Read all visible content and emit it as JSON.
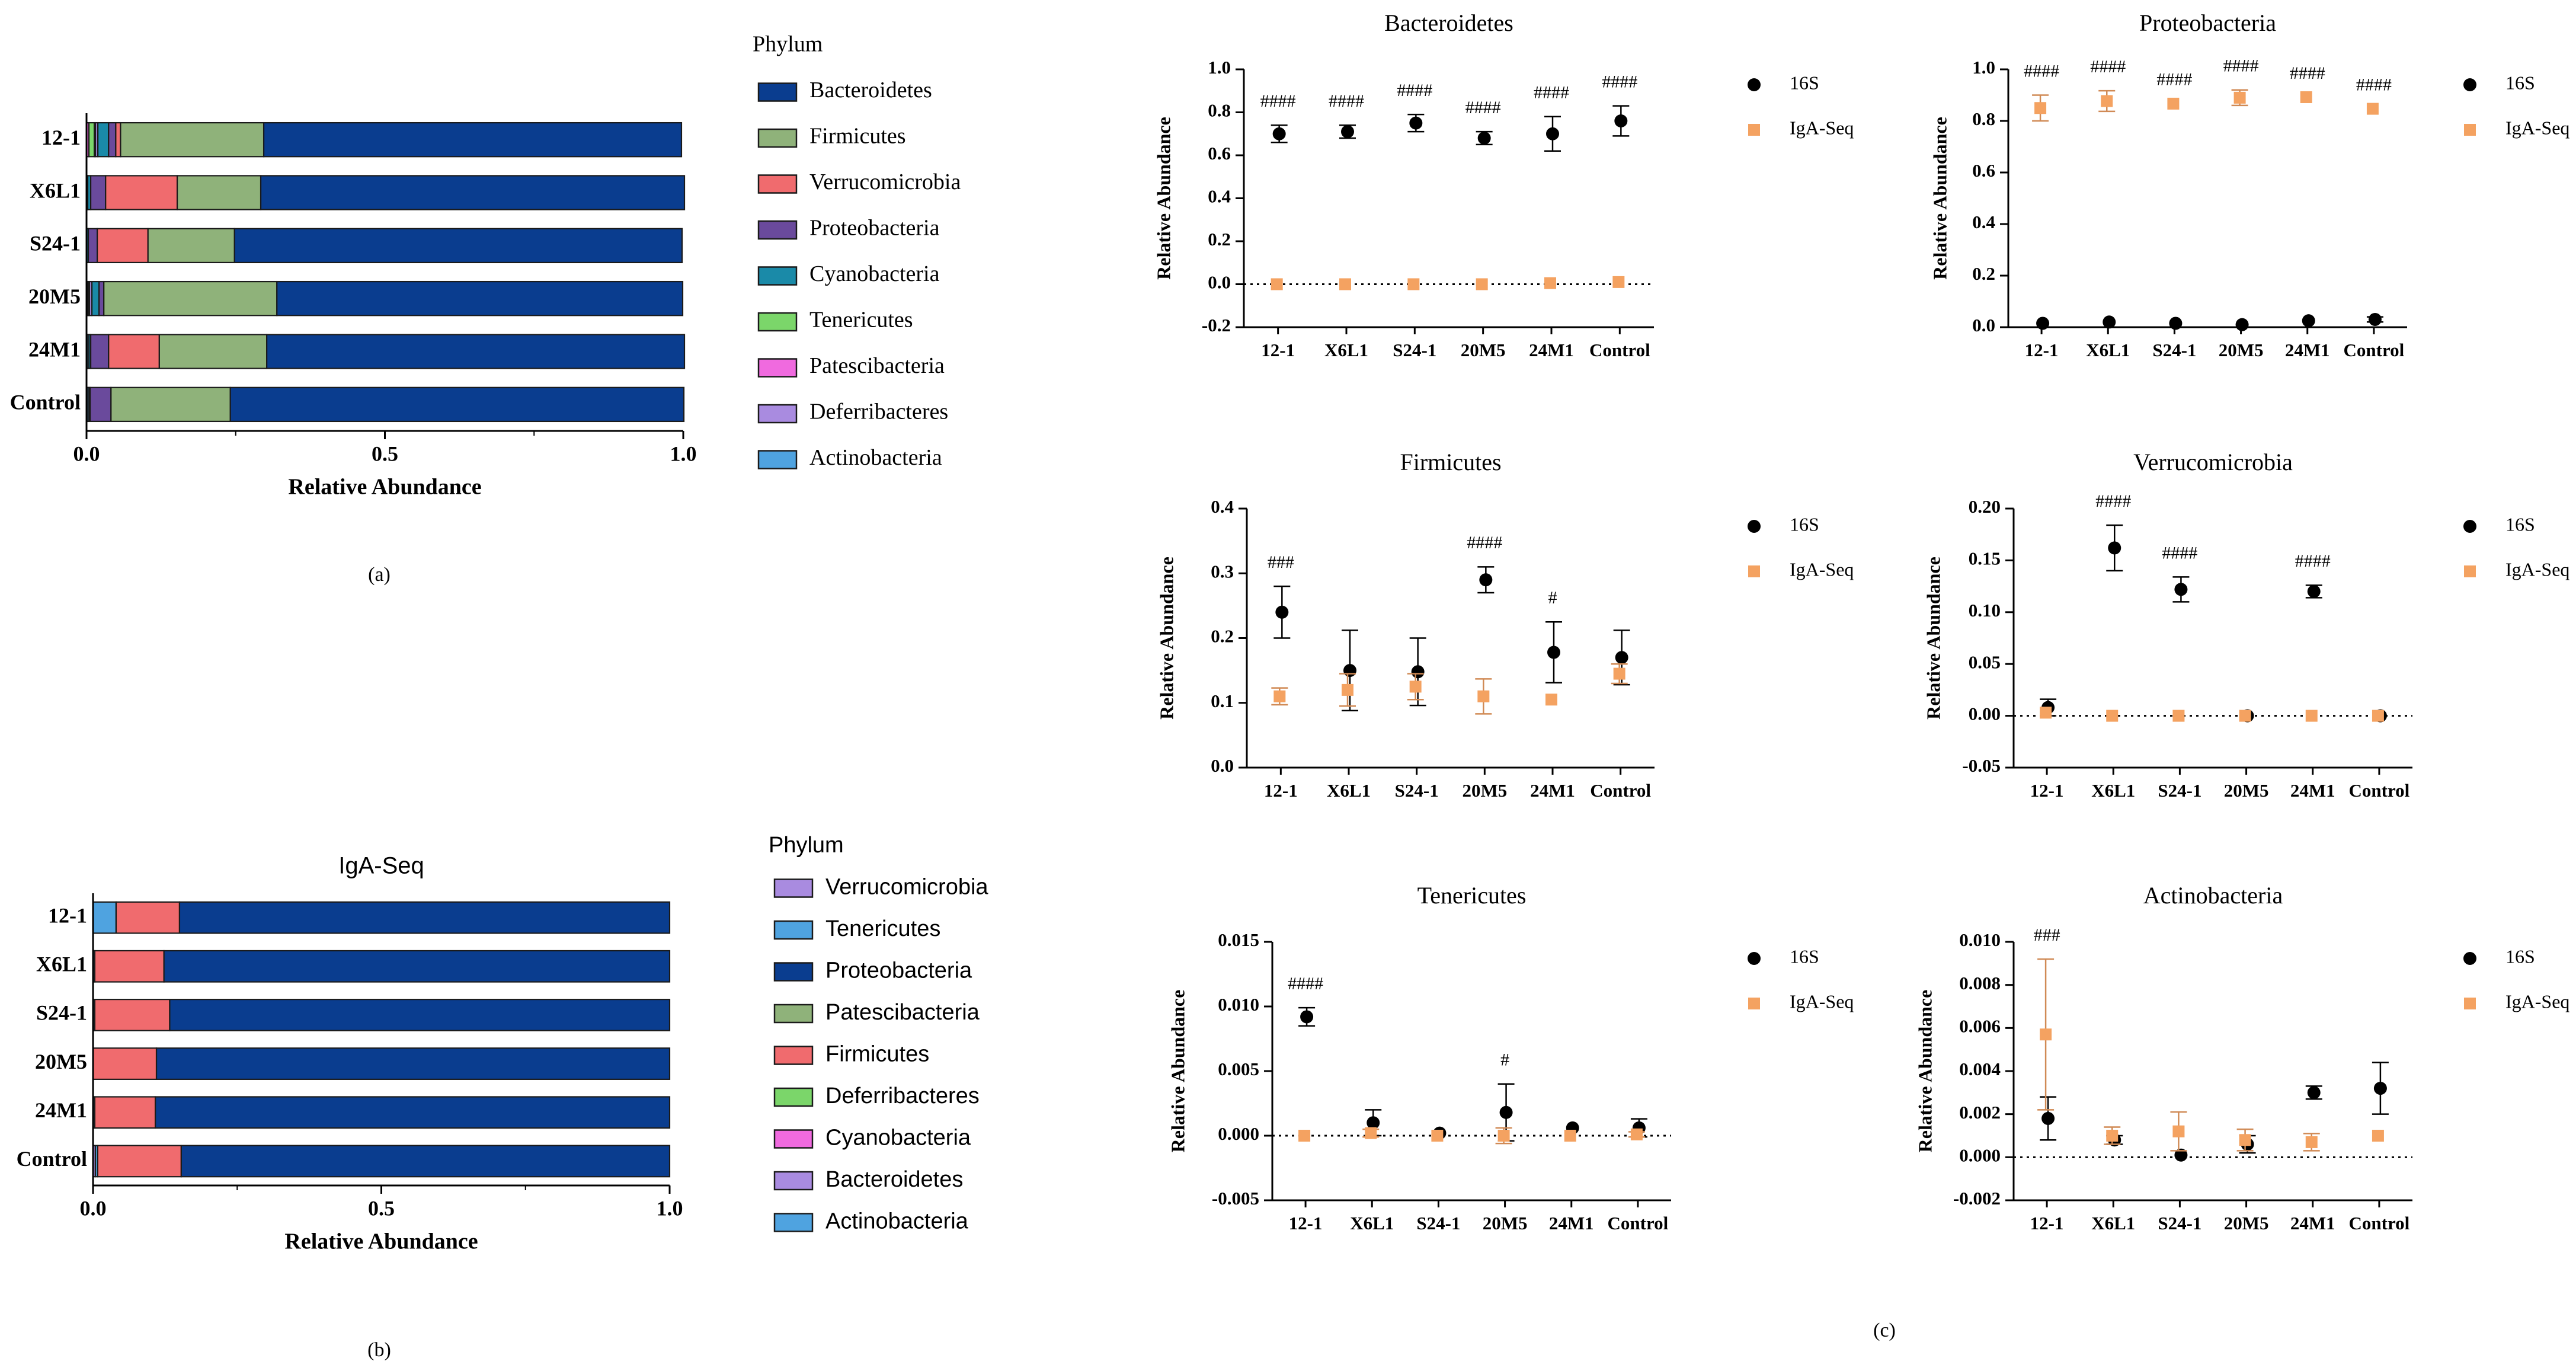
{
  "figure_labels": {
    "a": "(a)",
    "b": "(b)",
    "c": "(c)"
  },
  "chart_data": [
    {
      "id": "a",
      "type": "bar",
      "orientation": "horizontal",
      "stacked": true,
      "title": "",
      "xlabel": "Relative Abundance",
      "ylabel": "",
      "xlim": [
        0,
        1.0
      ],
      "xticks": [
        "0.0",
        "0.5",
        "1.0"
      ],
      "categories": [
        "12-1",
        "X6L1",
        "S24-1",
        "20M5",
        "24M1",
        "Control"
      ],
      "legend_title": "Phylum",
      "legend_position": "right",
      "stack_order": [
        "Patescibacteria",
        "Tenericutes",
        "Actinobacteria",
        "Deferribacteres",
        "Cyanobacteria",
        "Proteobacteria",
        "Verrucomicrobia",
        "Firmicutes",
        "Bacteroidetes"
      ],
      "series": [
        {
          "name": "Bacteroidetes",
          "color": "#0a3d8f",
          "values": [
            0.7,
            0.71,
            0.75,
            0.68,
            0.7,
            0.76
          ]
        },
        {
          "name": "Firmicutes",
          "color": "#8fb27a",
          "values": [
            0.24,
            0.14,
            0.145,
            0.29,
            0.18,
            0.2
          ]
        },
        {
          "name": "Verrucomicrobia",
          "color": "#f06b6e",
          "values": [
            0.008,
            0.12,
            0.085,
            0.0,
            0.085,
            0.0
          ]
        },
        {
          "name": "Proteobacteria",
          "color": "#6a4a9c",
          "values": [
            0.012,
            0.025,
            0.015,
            0.008,
            0.03,
            0.035
          ]
        },
        {
          "name": "Cyanobacteria",
          "color": "#1a8aa8",
          "values": [
            0.018,
            0.005,
            0.003,
            0.012,
            0.003,
            0.002
          ]
        },
        {
          "name": "Tenericutes",
          "color": "#7bd66a",
          "values": [
            0.009,
            0.001,
            0.0,
            0.002,
            0.001,
            0.001
          ]
        },
        {
          "name": "Patescibacteria",
          "color": "#f06adf",
          "values": [
            0.004,
            0.0,
            0.0,
            0.002,
            0.0,
            0.0
          ]
        },
        {
          "name": "Deferribacteres",
          "color": "#a98be0",
          "values": [
            0.004,
            0.0,
            0.0,
            0.004,
            0.0,
            0.0
          ]
        },
        {
          "name": "Actinobacteria",
          "color": "#4fa3e0",
          "values": [
            0.002,
            0.001,
            0.0,
            0.001,
            0.003,
            0.003
          ]
        }
      ]
    },
    {
      "id": "b",
      "type": "bar",
      "orientation": "horizontal",
      "stacked": true,
      "title": "IgA-Seq",
      "xlabel": "Relative Abundance",
      "ylabel": "",
      "xlim": [
        0,
        1.0
      ],
      "xticks": [
        "0.0",
        "0.5",
        "1.0"
      ],
      "categories": [
        "12-1",
        "X6L1",
        "S24-1",
        "20M5",
        "24M1",
        "Control"
      ],
      "legend_title": "Phylum",
      "legend_position": "right",
      "stack_order": [
        "Verrucomicrobia",
        "Tenericutes",
        "Firmicutes",
        "Proteobacteria"
      ],
      "legend_entries": [
        {
          "name": "Verrucomicrobia",
          "color": "#a98be0"
        },
        {
          "name": "Tenericutes",
          "color": "#4fa3e0"
        },
        {
          "name": "Proteobacteria",
          "color": "#0a3d8f"
        },
        {
          "name": "Patescibacteria",
          "color": "#8fb27a"
        },
        {
          "name": "Firmicutes",
          "color": "#f06b6e"
        },
        {
          "name": "Deferribacteres",
          "color": "#7bd66a"
        },
        {
          "name": "Cyanobacteria",
          "color": "#f06adf"
        },
        {
          "name": "Bacteroidetes",
          "color": "#a98be0"
        },
        {
          "name": "Actinobacteria",
          "color": "#4fa3e0"
        }
      ],
      "series": [
        {
          "name": "Verrucomicrobia",
          "color": "#a98be0",
          "values": [
            0.0,
            0.0,
            0.0,
            0.0,
            0.0,
            0.004
          ]
        },
        {
          "name": "Tenericutes",
          "color": "#4fa3e0",
          "values": [
            0.04,
            0.003,
            0.003,
            0.0,
            0.003,
            0.004
          ]
        },
        {
          "name": "Firmicutes",
          "color": "#f06b6e",
          "values": [
            0.11,
            0.12,
            0.13,
            0.11,
            0.105,
            0.145
          ]
        },
        {
          "name": "Proteobacteria",
          "color": "#0a3d8f",
          "values": [
            0.85,
            0.877,
            0.867,
            0.89,
            0.892,
            0.847
          ]
        }
      ]
    },
    {
      "id": "c1",
      "type": "scatter",
      "title": "Bacteroidetes",
      "xlabel": "",
      "ylabel": "Relative Abundance",
      "categories": [
        "12-1",
        "X6L1",
        "S24-1",
        "20M5",
        "24M1",
        "Control"
      ],
      "ylim": [
        -0.2,
        1.0
      ],
      "yticks": [
        "-0.2",
        "0.0",
        "0.2",
        "0.4",
        "0.6",
        "0.8",
        "1.0"
      ],
      "zero_line": true,
      "annotations": [
        "####",
        "####",
        "####",
        "####",
        "####",
        "####"
      ],
      "legend_position": "right",
      "series": [
        {
          "name": "16S",
          "marker": "circle",
          "color": "#000000",
          "values": [
            0.7,
            0.71,
            0.75,
            0.68,
            0.7,
            0.76
          ],
          "err": [
            0.04,
            0.03,
            0.04,
            0.03,
            0.08,
            0.07
          ]
        },
        {
          "name": "IgA-Seq",
          "marker": "square",
          "color": "#f4a261",
          "values": [
            0.0,
            0.0,
            0.0,
            0.0,
            0.005,
            0.01
          ],
          "err": [
            0,
            0,
            0,
            0,
            0,
            0
          ]
        }
      ]
    },
    {
      "id": "c2",
      "type": "scatter",
      "title": "Proteobacteria",
      "xlabel": "",
      "ylabel": "Relative Abundance",
      "categories": [
        "12-1",
        "X6L1",
        "S24-1",
        "20M5",
        "24M1",
        "Control"
      ],
      "ylim": [
        0.0,
        1.0
      ],
      "yticks": [
        "0.0",
        "0.2",
        "0.4",
        "0.6",
        "0.8",
        "1.0"
      ],
      "zero_line": false,
      "annotations": [
        "####",
        "####",
        "####",
        "####",
        "####",
        "####"
      ],
      "legend_position": "right",
      "series": [
        {
          "name": "16S",
          "marker": "circle",
          "color": "#000000",
          "values": [
            0.015,
            0.02,
            0.015,
            0.01,
            0.025,
            0.03
          ],
          "err": [
            0,
            0,
            0,
            0,
            0,
            0.01
          ]
        },
        {
          "name": "IgA-Seq",
          "marker": "square",
          "color": "#f4a261",
          "values": [
            0.85,
            0.877,
            0.867,
            0.89,
            0.892,
            0.847
          ],
          "err": [
            0.05,
            0.04,
            0.0,
            0.03,
            0.0,
            0.0
          ]
        }
      ]
    },
    {
      "id": "c3",
      "type": "scatter",
      "title": "Firmicutes",
      "xlabel": "",
      "ylabel": "Relative Abundance",
      "categories": [
        "12-1",
        "X6L1",
        "S24-1",
        "20M5",
        "24M1",
        "Control"
      ],
      "ylim": [
        0.0,
        0.4
      ],
      "yticks": [
        "0.0",
        "0.1",
        "0.2",
        "0.3",
        "0.4"
      ],
      "zero_line": false,
      "annotations": [
        "###",
        "",
        "",
        "####",
        "#",
        ""
      ],
      "legend_position": "right",
      "series": [
        {
          "name": "16S",
          "marker": "circle",
          "color": "#000000",
          "values": [
            0.24,
            0.15,
            0.148,
            0.29,
            0.178,
            0.17
          ],
          "err": [
            0.04,
            0.062,
            0.052,
            0.02,
            0.047,
            0.042
          ]
        },
        {
          "name": "IgA-Seq",
          "marker": "square",
          "color": "#f4a261",
          "values": [
            0.11,
            0.12,
            0.125,
            0.11,
            0.105,
            0.145
          ],
          "err": [
            0.013,
            0.025,
            0.02,
            0.027,
            0.0,
            0.015
          ]
        }
      ]
    },
    {
      "id": "c4",
      "type": "scatter",
      "title": "Verrucomicrobia",
      "xlabel": "",
      "ylabel": "Relative Abundance",
      "categories": [
        "12-1",
        "X6L1",
        "S24-1",
        "20M5",
        "24M1",
        "Control"
      ],
      "ylim": [
        -0.05,
        0.2
      ],
      "yticks": [
        "-0.05",
        "0.00",
        "0.05",
        "0.10",
        "0.15",
        "0.20"
      ],
      "zero_line": true,
      "annotations": [
        "",
        "####",
        "####",
        "",
        "####",
        ""
      ],
      "legend_position": "right",
      "series": [
        {
          "name": "16S",
          "marker": "circle",
          "color": "#000000",
          "values": [
            0.008,
            0.162,
            0.122,
            0.0,
            0.12,
            0.0
          ],
          "err": [
            0.008,
            0.022,
            0.012,
            0.0,
            0.006,
            0.0
          ]
        },
        {
          "name": "IgA-Seq",
          "marker": "square",
          "color": "#f4a261",
          "values": [
            0.003,
            0.0,
            0.0,
            0.0,
            0.0,
            0.0
          ],
          "err": [
            0,
            0,
            0,
            0,
            0,
            0
          ]
        }
      ]
    },
    {
      "id": "c5",
      "type": "scatter",
      "title": "Tenericutes",
      "xlabel": "",
      "ylabel": "Relative Abundance",
      "categories": [
        "12-1",
        "X6L1",
        "S24-1",
        "20M5",
        "24M1",
        "Control"
      ],
      "ylim": [
        -0.005,
        0.015
      ],
      "yticks": [
        "-0.005",
        "0.000",
        "0.005",
        "0.010",
        "0.015"
      ],
      "zero_line": true,
      "annotations": [
        "####",
        "",
        "",
        "#",
        "",
        ""
      ],
      "legend_position": "right",
      "series": [
        {
          "name": "16S",
          "marker": "circle",
          "color": "#000000",
          "values": [
            0.0092,
            0.001,
            0.0002,
            0.0018,
            0.0006,
            0.0006
          ],
          "err": [
            0.0007,
            0.001,
            0.0,
            0.0022,
            0.0,
            0.0007
          ]
        },
        {
          "name": "IgA-Seq",
          "marker": "square",
          "color": "#f4a261",
          "values": [
            0.0,
            0.0002,
            0.0,
            0.0,
            0.0,
            0.0001
          ],
          "err": [
            0,
            0.0003,
            0,
            0.0006,
            0,
            0.0002
          ]
        }
      ]
    },
    {
      "id": "c6",
      "type": "scatter",
      "title": "Actinobacteria",
      "xlabel": "",
      "ylabel": "Relative Abundance",
      "categories": [
        "12-1",
        "X6L1",
        "S24-1",
        "20M5",
        "24M1",
        "Control"
      ],
      "ylim": [
        -0.002,
        0.01
      ],
      "yticks": [
        "-0.002",
        "0.000",
        "0.002",
        "0.004",
        "0.006",
        "0.008",
        "0.010"
      ],
      "zero_line": true,
      "annotations": [
        "###",
        "",
        "",
        "",
        "",
        ""
      ],
      "legend_position": "right",
      "series": [
        {
          "name": "16S",
          "marker": "circle",
          "color": "#000000",
          "values": [
            0.0018,
            0.0008,
            0.0001,
            0.0006,
            0.003,
            0.0032
          ],
          "err": [
            0.001,
            0.0002,
            0.0,
            0.0004,
            0.0003,
            0.0012
          ]
        },
        {
          "name": "IgA-Seq",
          "marker": "square",
          "color": "#f4a261",
          "values": [
            0.0057,
            0.001,
            0.0012,
            0.0008,
            0.0007,
            0.001
          ],
          "err": [
            0.0035,
            0.0004,
            0.0009,
            0.0005,
            0.0004,
            0.0
          ]
        }
      ]
    }
  ]
}
